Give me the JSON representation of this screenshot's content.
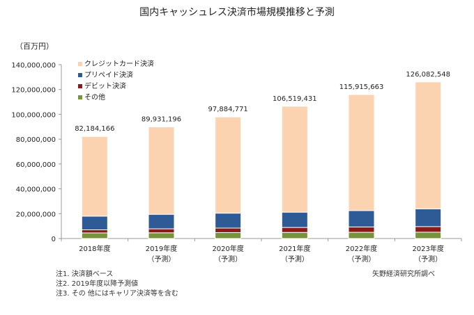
{
  "chart_data": {
    "type": "bar",
    "stacked": true,
    "title": "国内キャッシュレス決済市場規模推移と予測",
    "ylabel": "（百万円）",
    "ylim": [
      0,
      140000000
    ],
    "yticks": [
      "0",
      "20,000,000",
      "40,000,000",
      "60,000,000",
      "80,000,000",
      "100,000,000",
      "120,000,000",
      "140,000,000"
    ],
    "categories": [
      [
        "2018年度",
        ""
      ],
      [
        "2019年度",
        "（予測）"
      ],
      [
        "2020年度",
        "（予測）"
      ],
      [
        "2021年度",
        "（予測）"
      ],
      [
        "2022年度",
        "（予測）"
      ],
      [
        "2023年度",
        "（予測）"
      ]
    ],
    "totals": [
      "82,184,166",
      "89,931,196",
      "97,884,771",
      "106,519,431",
      "115,915,663",
      "126,082,548"
    ],
    "total_values": [
      82184166,
      89931196,
      97884771,
      106519431,
      115915663,
      126082548
    ],
    "legend": "top-left",
    "series": [
      {
        "name": "その他",
        "color": "#77933c",
        "values": [
          4500000,
          4600000,
          4800000,
          4900000,
          5000000,
          5100000
        ]
      },
      {
        "name": "デビット決済",
        "color": "#8b1a1a",
        "values": [
          2500000,
          3200000,
          3600000,
          4000000,
          4300000,
          4500000
        ]
      },
      {
        "name": "プリペイド決済",
        "color": "#2e5b95",
        "values": [
          11000000,
          11700000,
          12000000,
          12300000,
          13200000,
          14300000
        ]
      },
      {
        "name": "クレジットカード決済",
        "color": "#fbd3b0",
        "values": [
          64184166,
          70431196,
          77484771,
          85319431,
          93415663,
          102182548
        ]
      }
    ]
  },
  "notes": [
    "注1. 決済額ベース",
    "注2. 2019年度以降予測値",
    "注3. その 他にはキャリア決済等を含む"
  ],
  "source": "矢野経済研究所調べ"
}
